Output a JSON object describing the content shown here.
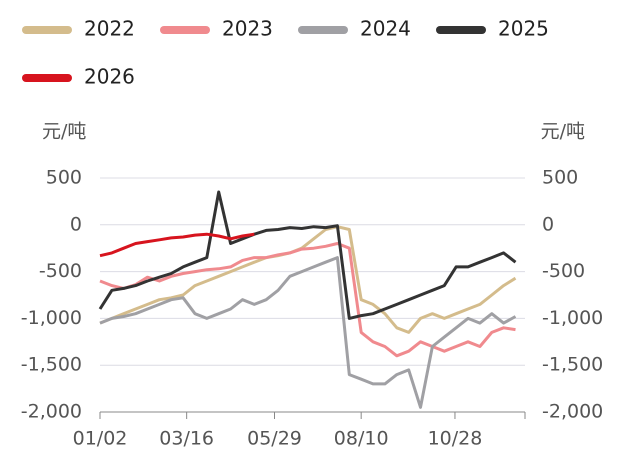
{
  "chart_data": {
    "type": "line",
    "y_label": "元/吨",
    "y2_label": "元/吨",
    "x": [
      2,
      12,
      22,
      32,
      42,
      52,
      62,
      72,
      82,
      92,
      102,
      112,
      122,
      132,
      142,
      152,
      162,
      172,
      182,
      192,
      202,
      212,
      222,
      232,
      242,
      252,
      262,
      272,
      282,
      292,
      302,
      312,
      322,
      332,
      342,
      352
    ],
    "xlim": [
      2,
      360
    ],
    "xticks": [
      {
        "value": 2,
        "label": "01/02"
      },
      {
        "value": 75,
        "label": "03/16"
      },
      {
        "value": 149,
        "label": "05/29"
      },
      {
        "value": 222,
        "label": "08/10"
      },
      {
        "value": 301,
        "label": "10/28"
      }
    ],
    "ylim": [
      -2000,
      500
    ],
    "yticks": [
      500,
      0,
      -500,
      {
        "value": -1000,
        "label": "-1,000"
      },
      {
        "value": -1500,
        "label": "-1,500"
      },
      {
        "value": -2000,
        "label": "-2,000"
      }
    ],
    "y2lim": [
      -2000,
      500
    ],
    "y2ticks": [
      500,
      0,
      -500,
      {
        "value": -1000,
        "label": "-1,000"
      },
      {
        "value": -1500,
        "label": "-1,500"
      },
      {
        "value": -2000,
        "label": "-2,000"
      }
    ],
    "grid": true,
    "series": [
      {
        "name": "2022",
        "color": "#d4bc8c",
        "values": [
          -1050,
          -1000,
          -950,
          -900,
          -850,
          -800,
          -780,
          -750,
          -650,
          -600,
          -550,
          -500,
          -450,
          -400,
          -350,
          -330,
          -300,
          -250,
          -150,
          -50,
          -20,
          -50,
          -800,
          -850,
          -950,
          -1100,
          -1150,
          -1000,
          -950,
          -1000,
          -950,
          -900,
          -850,
          -750,
          -650,
          -570
        ]
      },
      {
        "name": "2023",
        "color": "#f08a8e",
        "values": [
          -600,
          -650,
          -680,
          -640,
          -560,
          -600,
          -550,
          -520,
          -500,
          -480,
          -470,
          -450,
          -380,
          -350,
          -350,
          -320,
          -300,
          -260,
          -250,
          -230,
          -200,
          -250,
          -1150,
          -1250,
          -1300,
          -1400,
          -1350,
          -1250,
          -1300,
          -1350,
          -1300,
          -1250,
          -1300,
          -1150,
          -1100,
          -1120
        ]
      },
      {
        "name": "2024",
        "color": "#a0a0a4",
        "values": [
          -1050,
          -1000,
          -980,
          -950,
          -900,
          -850,
          -800,
          -780,
          -950,
          -1000,
          -950,
          -900,
          -800,
          -850,
          -800,
          -700,
          -550,
          -500,
          -450,
          -400,
          -350,
          -1600,
          -1650,
          -1700,
          -1700,
          -1600,
          -1550,
          -1950,
          -1300,
          -1200,
          -1100,
          -1000,
          -1050,
          -950,
          -1050,
          -980
        ]
      },
      {
        "name": "2025",
        "color": "#333333",
        "values": [
          -900,
          -700,
          -680,
          -650,
          -600,
          -560,
          -520,
          -450,
          -400,
          -350,
          350,
          -200,
          -150,
          -100,
          -60,
          -50,
          -30,
          -40,
          -20,
          -30,
          -10,
          -1000,
          -970,
          -950,
          -900,
          -850,
          -800,
          -750,
          -700,
          -650,
          -450,
          -450,
          -400,
          -350,
          -300,
          -400
        ]
      },
      {
        "name": "2026",
        "color": "#d7141e",
        "values": [
          -330,
          -300,
          -250,
          -200,
          -180,
          -160,
          -140,
          -130,
          -110,
          -100,
          -120,
          -150,
          -120,
          -100,
          null,
          null,
          null,
          null,
          null,
          null,
          null,
          null,
          null,
          null,
          null,
          null,
          null,
          null,
          null,
          null,
          null,
          null,
          null,
          null,
          null,
          null
        ]
      }
    ]
  }
}
